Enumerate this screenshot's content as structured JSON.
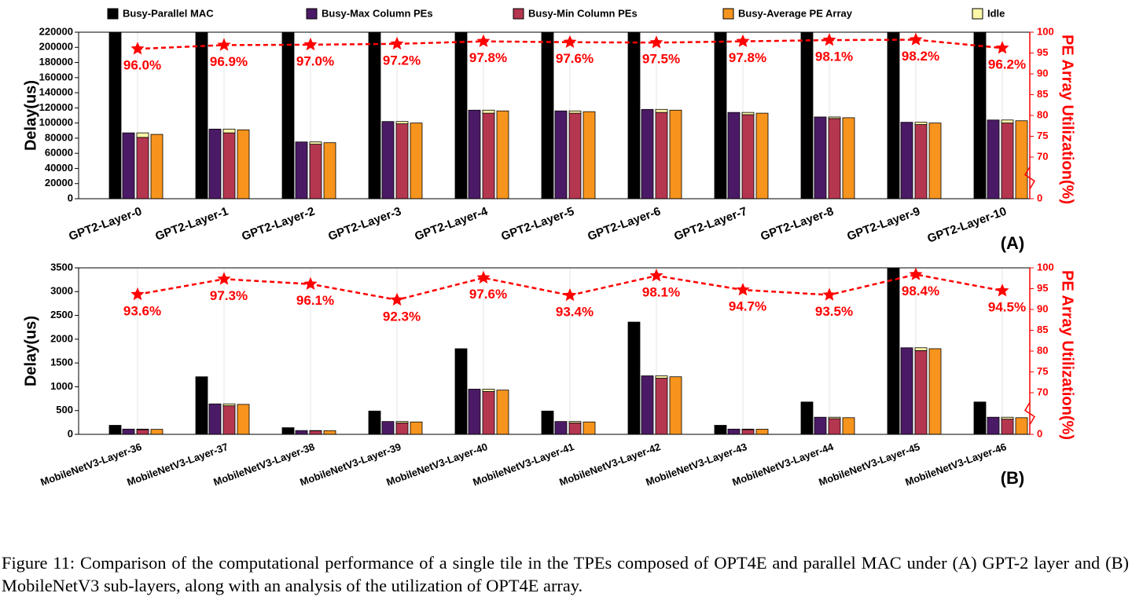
{
  "legend": [
    "Busy-Parallel MAC",
    "Busy-Max Column PEs",
    "Busy-Min Column PEs",
    "Busy-Average PE Array",
    "Idle"
  ],
  "chart_data": [
    {
      "type": "bar",
      "label": "(A)",
      "y_label": "Delay(us)",
      "y2_label": "PE Array Utilization(%)",
      "categories": [
        "GPT2-Layer-0",
        "GPT2-Layer-1",
        "GPT2-Layer-2",
        "GPT2-Layer-3",
        "GPT2-Layer-4",
        "GPT2-Layer-5",
        "GPT2-Layer-6",
        "GPT2-Layer-7",
        "GPT2-Layer-8",
        "GPT2-Layer-9",
        "GPT2-Layer-10"
      ],
      "ylim": [
        0,
        220000
      ],
      "yticks": [
        0,
        20000,
        40000,
        60000,
        80000,
        100000,
        120000,
        140000,
        160000,
        180000,
        200000,
        220000
      ],
      "y2lim": [
        0,
        100
      ],
      "y2ticks": [
        0,
        70,
        75,
        80,
        85,
        90,
        95,
        100
      ],
      "series": [
        {
          "color": "#000000",
          "values": [
            260000,
            260000,
            260000,
            260000,
            260000,
            260000,
            260000,
            260000,
            260000,
            260000,
            260000
          ]
        },
        {
          "color": "#4b1a66",
          "values": [
            87000,
            92000,
            75000,
            102000,
            117000,
            116000,
            118000,
            114000,
            108000,
            101000,
            104000
          ]
        },
        {
          "color": "#b5364f",
          "values": [
            81000,
            87000,
            72000,
            99000,
            113000,
            113000,
            114000,
            111000,
            106000,
            98000,
            100000
          ]
        },
        {
          "color": "#f7941d",
          "values": [
            85000,
            91000,
            74000,
            100000,
            116000,
            115000,
            117000,
            113000,
            107000,
            100000,
            103000
          ]
        },
        {
          "color": "#fdf7a8",
          "stack_on": 2,
          "values": [
            6000,
            5000,
            3000,
            3000,
            4000,
            3000,
            4000,
            3000,
            2000,
            3000,
            4000
          ]
        },
        {
          "type": "line",
          "axis": "y2",
          "color": "#ff0000",
          "values": [
            96.0,
            96.9,
            97.0,
            97.2,
            97.8,
            97.6,
            97.5,
            97.8,
            98.1,
            98.2,
            96.2
          ],
          "value_labels": [
            "96.0%",
            "96.9%",
            "97.0%",
            "97.2%",
            "97.8%",
            "97.6%",
            "97.5%",
            "97.8%",
            "98.1%",
            "98.2%",
            "96.2%"
          ]
        }
      ]
    },
    {
      "type": "bar",
      "label": "(B)",
      "y_label": "Delay(us)",
      "y2_label": "PE Array Utilization(%)",
      "categories": [
        "MobileNetV3-Layer-36",
        "MobileNetV3-Layer-37",
        "MobileNetV3-Layer-38",
        "MobileNetV3-Layer-39",
        "MobileNetV3-Layer-40",
        "MobileNetV3-Layer-41",
        "MobileNetV3-Layer-42",
        "MobileNetV3-Layer-43",
        "MobileNetV3-Layer-44",
        "MobileNetV3-Layer-45",
        "MobileNetV3-Layer-46"
      ],
      "ylim": [
        0,
        3500
      ],
      "yticks": [
        0,
        500,
        1000,
        1500,
        2000,
        2500,
        3000,
        3500
      ],
      "y2lim": [
        0,
        100
      ],
      "y2ticks": [
        0,
        70,
        75,
        80,
        85,
        90,
        95,
        100
      ],
      "series": [
        {
          "color": "#000000",
          "values": [
            190,
            1210,
            140,
            490,
            1800,
            490,
            2360,
            190,
            680,
            3600,
            680
          ]
        },
        {
          "color": "#4b1a66",
          "values": [
            110,
            640,
            80,
            270,
            950,
            270,
            1230,
            110,
            360,
            1820,
            360
          ]
        },
        {
          "color": "#b5364f",
          "values": [
            100,
            600,
            75,
            240,
            900,
            240,
            1180,
            100,
            330,
            1760,
            320
          ]
        },
        {
          "color": "#f7941d",
          "values": [
            105,
            630,
            78,
            260,
            930,
            260,
            1210,
            108,
            350,
            1800,
            350
          ]
        },
        {
          "color": "#fdf7a8",
          "stack_on": 2,
          "values": [
            10,
            40,
            5,
            30,
            50,
            30,
            50,
            10,
            30,
            60,
            40
          ]
        },
        {
          "type": "line",
          "axis": "y2",
          "color": "#ff0000",
          "values": [
            93.6,
            97.3,
            96.1,
            92.3,
            97.6,
            93.4,
            98.1,
            94.7,
            93.5,
            98.4,
            94.5
          ],
          "value_labels": [
            "93.6%",
            "97.3%",
            "96.1%",
            "92.3%",
            "97.6%",
            "93.4%",
            "98.1%",
            "94.7%",
            "93.5%",
            "98.4%",
            "94.5%"
          ]
        }
      ]
    }
  ],
  "caption": "Figure 11: Comparison of the computational performance of a single tile in the TPEs composed of OPT4E and parallel MAC under (A) GPT-2 layer and (B) MobileNetV3 sub-layers, along with an analysis of the utilization of OPT4E array."
}
